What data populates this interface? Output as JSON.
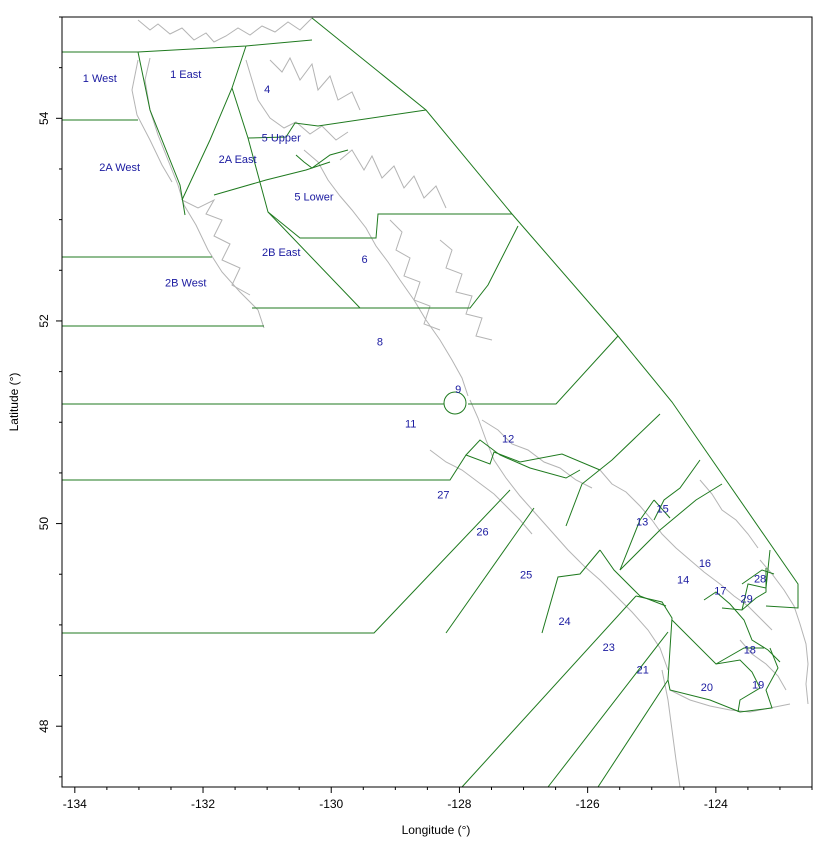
{
  "map": {
    "x_axis": {
      "title": "Longitude (°)",
      "range": [
        -134.2,
        -122.5
      ],
      "ticks": [
        -134,
        -132,
        -130,
        -128,
        -126,
        -124
      ],
      "tick_labels": [
        "-134",
        "-132",
        "-130",
        "-128",
        "-126",
        "-124"
      ]
    },
    "y_axis": {
      "title": "Latitude (°)",
      "range": [
        47.4,
        55.0
      ],
      "ticks": [
        48,
        50,
        52,
        54
      ],
      "tick_labels": [
        "48",
        "50",
        "52",
        "54"
      ]
    },
    "colors": {
      "boundary": "#1f7a1f",
      "coastline": "#b4b4b4",
      "label": "#1a1aa0",
      "frame": "#000000"
    },
    "areas": [
      {
        "label": "1 West",
        "lon": -133.61,
        "lat": 54.36
      },
      {
        "label": "1 East",
        "lon": -132.27,
        "lat": 54.4
      },
      {
        "label": "4",
        "lon": -131.0,
        "lat": 54.25
      },
      {
        "label": "5 Upper",
        "lon": -130.78,
        "lat": 53.77
      },
      {
        "label": "2A East",
        "lon": -131.46,
        "lat": 53.56
      },
      {
        "label": "2A West",
        "lon": -133.3,
        "lat": 53.48
      },
      {
        "label": "5 Lower",
        "lon": -130.27,
        "lat": 53.19
      },
      {
        "label": "2B East",
        "lon": -130.78,
        "lat": 52.64
      },
      {
        "label": "6",
        "lon": -129.48,
        "lat": 52.57
      },
      {
        "label": "2B West",
        "lon": -132.27,
        "lat": 52.34
      },
      {
        "label": "8",
        "lon": -129.24,
        "lat": 51.76
      },
      {
        "label": "9",
        "lon": -128.02,
        "lat": 51.29
      },
      {
        "label": "11",
        "lon": -128.76,
        "lat": 50.95
      },
      {
        "label": "12",
        "lon": -127.24,
        "lat": 50.8
      },
      {
        "label": "27",
        "lon": -128.25,
        "lat": 50.25
      },
      {
        "label": "15",
        "lon": -124.83,
        "lat": 50.11
      },
      {
        "label": "13",
        "lon": -125.15,
        "lat": 49.98
      },
      {
        "label": "26",
        "lon": -127.64,
        "lat": 49.88
      },
      {
        "label": "16",
        "lon": -124.17,
        "lat": 49.57
      },
      {
        "label": "25",
        "lon": -126.96,
        "lat": 49.46
      },
      {
        "label": "14",
        "lon": -124.51,
        "lat": 49.41
      },
      {
        "label": "28",
        "lon": -123.31,
        "lat": 49.42
      },
      {
        "label": "17",
        "lon": -123.93,
        "lat": 49.3
      },
      {
        "label": "29",
        "lon": -123.52,
        "lat": 49.22
      },
      {
        "label": "24",
        "lon": -126.36,
        "lat": 49.0
      },
      {
        "label": "18",
        "lon": -123.47,
        "lat": 48.72
      },
      {
        "label": "23",
        "lon": -125.67,
        "lat": 48.74
      },
      {
        "label": "21",
        "lon": -125.14,
        "lat": 48.52
      },
      {
        "label": "20",
        "lon": -124.14,
        "lat": 48.35
      },
      {
        "label": "19",
        "lon": -123.34,
        "lat": 48.37
      }
    ]
  }
}
